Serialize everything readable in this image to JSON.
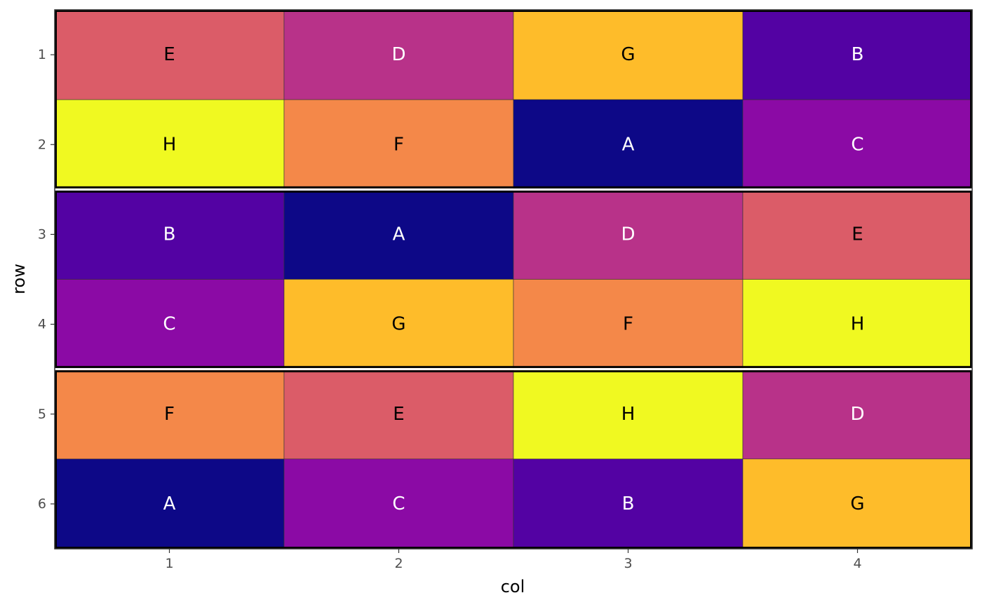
{
  "chart_data": {
    "type": "heatmap",
    "title": "",
    "xlabel": "col",
    "ylabel": "row",
    "x_ticks": [
      "1",
      "2",
      "3",
      "4"
    ],
    "y_ticks": [
      "1",
      "2",
      "3",
      "4",
      "5",
      "6"
    ],
    "xlim": [
      0.5,
      4.5
    ],
    "ylim": [
      0.5,
      6.5
    ],
    "y_reversed": true,
    "grid": false,
    "legend": "none",
    "blocks": [
      {
        "rows": [
          1,
          2
        ]
      },
      {
        "rows": [
          3,
          4
        ]
      },
      {
        "rows": [
          5,
          6
        ]
      }
    ],
    "treatment_colors": {
      "A": "#0d0887",
      "B": "#5302a3",
      "C": "#8b0aa5",
      "D": "#b83289",
      "E": "#db5c68",
      "F": "#f48849",
      "G": "#febc2a",
      "H": "#f0f921"
    },
    "label_colors": {
      "A": "#ffffff",
      "B": "#ffffff",
      "C": "#ffffff",
      "D": "#ffffff",
      "E": "#000000",
      "F": "#000000",
      "G": "#000000",
      "H": "#000000"
    },
    "cells": [
      {
        "row": 1,
        "col": 1,
        "treatment": "E"
      },
      {
        "row": 1,
        "col": 2,
        "treatment": "D"
      },
      {
        "row": 1,
        "col": 3,
        "treatment": "G"
      },
      {
        "row": 1,
        "col": 4,
        "treatment": "B"
      },
      {
        "row": 2,
        "col": 1,
        "treatment": "H"
      },
      {
        "row": 2,
        "col": 2,
        "treatment": "F"
      },
      {
        "row": 2,
        "col": 3,
        "treatment": "A"
      },
      {
        "row": 2,
        "col": 4,
        "treatment": "C"
      },
      {
        "row": 3,
        "col": 1,
        "treatment": "B"
      },
      {
        "row": 3,
        "col": 2,
        "treatment": "A"
      },
      {
        "row": 3,
        "col": 3,
        "treatment": "D"
      },
      {
        "row": 3,
        "col": 4,
        "treatment": "E"
      },
      {
        "row": 4,
        "col": 1,
        "treatment": "C"
      },
      {
        "row": 4,
        "col": 2,
        "treatment": "G"
      },
      {
        "row": 4,
        "col": 3,
        "treatment": "F"
      },
      {
        "row": 4,
        "col": 4,
        "treatment": "H"
      },
      {
        "row": 5,
        "col": 1,
        "treatment": "F"
      },
      {
        "row": 5,
        "col": 2,
        "treatment": "E"
      },
      {
        "row": 5,
        "col": 3,
        "treatment": "H"
      },
      {
        "row": 5,
        "col": 4,
        "treatment": "D"
      },
      {
        "row": 6,
        "col": 1,
        "treatment": "A"
      },
      {
        "row": 6,
        "col": 2,
        "treatment": "C"
      },
      {
        "row": 6,
        "col": 3,
        "treatment": "B"
      },
      {
        "row": 6,
        "col": 4,
        "treatment": "G"
      }
    ]
  }
}
